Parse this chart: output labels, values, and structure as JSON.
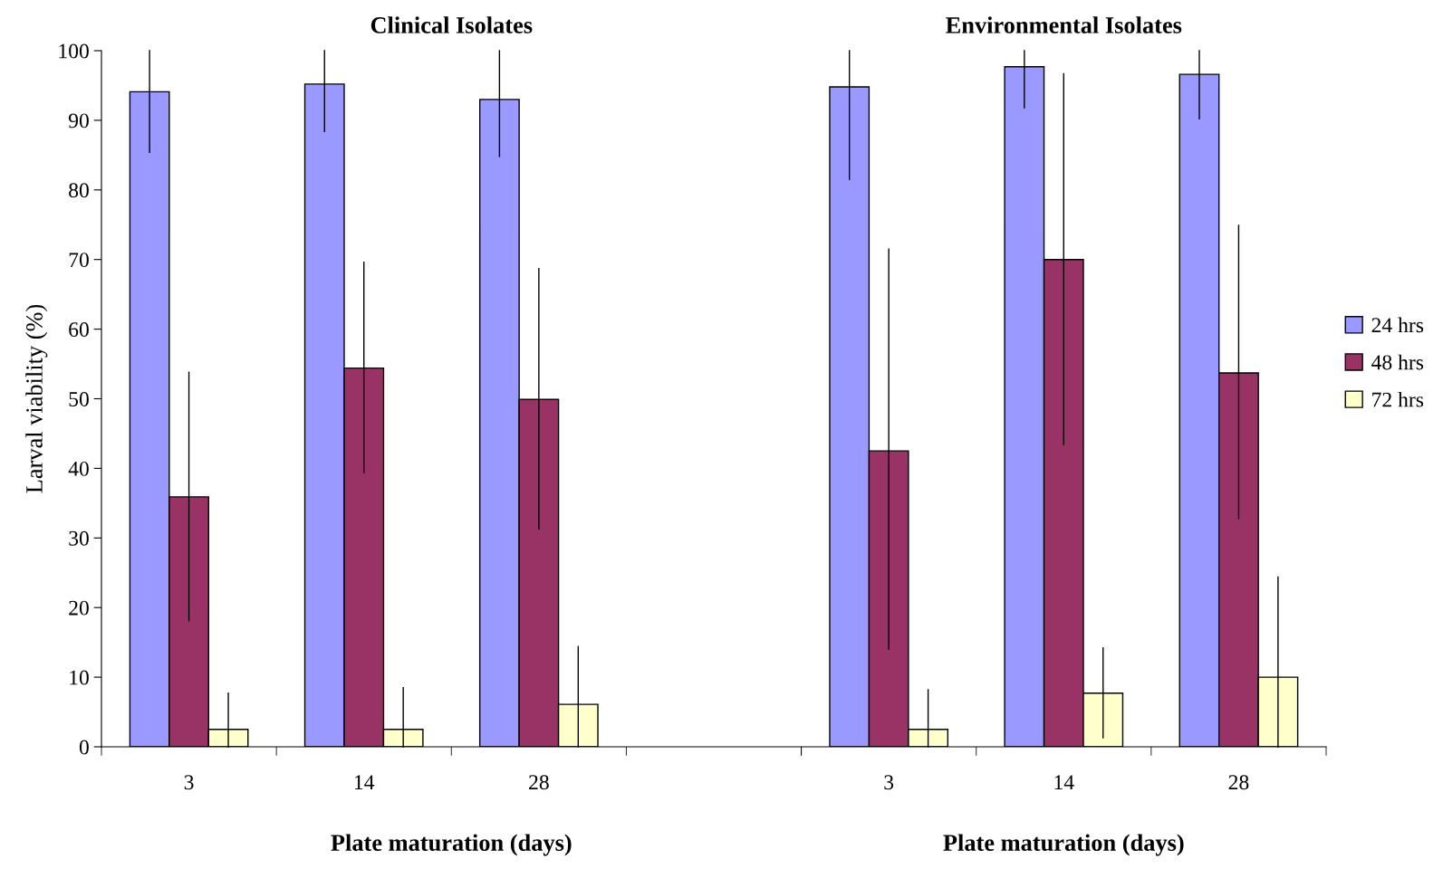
{
  "chart_data": [
    {
      "type": "bar",
      "title": "Clinical Isolates",
      "xlabel": "Plate maturation (days)",
      "ylabel": "Larval viability (%)",
      "categories": [
        "3",
        "14",
        "28",
        null
      ],
      "ylim": [
        0,
        100
      ],
      "yticks": [
        0,
        10,
        20,
        30,
        40,
        50,
        60,
        70,
        80,
        90,
        100
      ],
      "series": [
        {
          "color": "#9999ff",
          "values": [
            94.1,
            95.2,
            93.0,
            null
          ],
          "errors": [
            [
              85.4,
              100
            ],
            [
              88.4,
              100
            ],
            [
              84.8,
              100
            ],
            null
          ]
        },
        {
          "color": "#993366",
          "values": [
            35.9,
            54.4,
            49.9,
            null
          ],
          "errors": [
            [
              18.1,
              53.8
            ],
            [
              39.4,
              69.6
            ],
            [
              31.3,
              68.7
            ],
            null
          ]
        },
        {
          "color": "#ffffcc",
          "values": [
            2.5,
            2.5,
            6.1,
            null
          ],
          "errors": [
            [
              0,
              7.7
            ],
            [
              0,
              8.5
            ],
            [
              0,
              14.4
            ],
            null
          ]
        }
      ]
    },
    {
      "type": "bar",
      "title": "Environmental Isolates",
      "xlabel": "Plate maturation (days)",
      "categories": [
        "3",
        "14",
        "28"
      ],
      "ylim": [
        0,
        100
      ],
      "yticks": [
        0,
        10,
        20,
        30,
        40,
        50,
        60,
        70,
        80,
        90,
        100
      ],
      "tick_labels": "x",
      "legend": "right",
      "series": [
        {
          "name": "24 hrs",
          "color": "#9999ff",
          "values": [
            94.8,
            97.7,
            96.6
          ],
          "errors": [
            [
              81.5,
              100
            ],
            [
              91.8,
              100
            ],
            [
              90.2,
              100
            ]
          ]
        },
        {
          "name": "48 hrs",
          "color": "#993366",
          "values": [
            42.5,
            70.0,
            53.7
          ],
          "errors": [
            [
              14.0,
              71.5
            ],
            [
              43.4,
              96.7
            ],
            [
              32.8,
              74.9
            ]
          ]
        },
        {
          "name": "72 hrs",
          "color": "#ffffcc",
          "values": [
            2.5,
            7.7,
            10.0
          ],
          "errors": [
            [
              0,
              8.2
            ],
            [
              1.3,
              14.2
            ],
            [
              0,
              24.4
            ]
          ]
        }
      ]
    }
  ]
}
